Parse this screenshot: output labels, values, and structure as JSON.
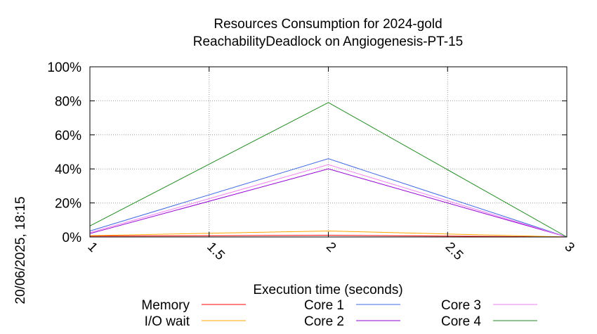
{
  "chart_data": {
    "type": "line",
    "title": [
      "Resources Consumption for 2024-gold",
      "ReachabilityDeadlock on Angiogenesis-PT-15"
    ],
    "xlabel": "Execution time (seconds)",
    "ylabel": "",
    "side_label": "20/06/2025, 18:15",
    "x": [
      1,
      2,
      3
    ],
    "xlim": [
      1,
      3
    ],
    "ylim": [
      0,
      100
    ],
    "x_ticks": [
      1,
      1.5,
      2,
      2.5,
      3
    ],
    "x_tick_labels": [
      "1",
      "1.5",
      "2",
      "2.5",
      "3"
    ],
    "y_ticks": [
      0,
      20,
      40,
      60,
      80,
      100
    ],
    "y_tick_labels": [
      "0%",
      "20%",
      "40%",
      "60%",
      "80%",
      "100%"
    ],
    "grid": true,
    "legend_position": "bottom",
    "series": [
      {
        "name": "Memory",
        "color": "#ff0000",
        "values": [
          0.5,
          1.0,
          0
        ]
      },
      {
        "name": "I/O wait",
        "color": "#ffa500",
        "values": [
          0.8,
          3.5,
          0
        ]
      },
      {
        "name": "Core 1",
        "color": "#4169e1",
        "values": [
          3.5,
          46,
          0
        ]
      },
      {
        "name": "Core 2",
        "color": "#9400d3",
        "values": [
          2.0,
          40,
          0
        ]
      },
      {
        "name": "Core 3",
        "color": "#ee82ee",
        "values": [
          2.5,
          42.5,
          0
        ]
      },
      {
        "name": "Core 4",
        "color": "#228b22",
        "values": [
          6.5,
          79,
          0
        ]
      }
    ]
  }
}
